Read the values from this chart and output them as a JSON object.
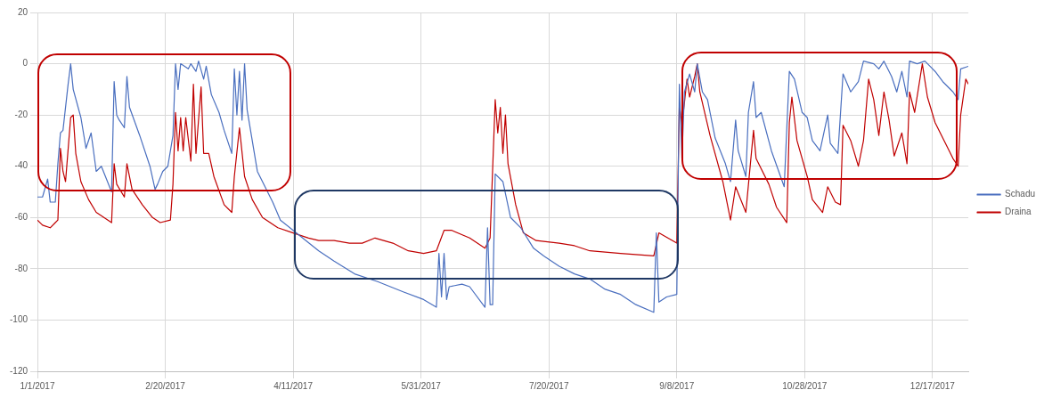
{
  "chart_data": {
    "type": "line",
    "legend": "right",
    "grid": true,
    "marker": "none",
    "line_style": "solid",
    "xlim": [
      "2017-01-01",
      "2017-12-31"
    ],
    "xticks": [
      {
        "value": "2017-01-01",
        "label": "1/1/2017"
      },
      {
        "value": "2017-02-20",
        "label": "2/20/2017"
      },
      {
        "value": "2017-04-11",
        "label": "4/11/2017"
      },
      {
        "value": "2017-05-31",
        "label": "5/31/2017"
      },
      {
        "value": "2017-07-20",
        "label": "7/20/2017"
      },
      {
        "value": "2017-09-08",
        "label": "9/8/2017"
      },
      {
        "value": "2017-10-28",
        "label": "10/28/2017"
      },
      {
        "value": "2017-12-17",
        "label": "12/17/2017"
      }
    ],
    "ylim": [
      -120,
      20
    ],
    "yticks": [
      -120,
      -100,
      -80,
      -60,
      -40,
      -20,
      0,
      20
    ],
    "series": [
      {
        "name": "Schadu",
        "color": "#4a6fbf",
        "x": [
          "2017-01-01",
          "2017-01-03",
          "2017-01-05",
          "2017-01-06",
          "2017-01-08",
          "2017-01-09",
          "2017-01-10",
          "2017-01-11",
          "2017-01-13",
          "2017-01-14",
          "2017-01-15",
          "2017-01-18",
          "2017-01-20",
          "2017-01-22",
          "2017-01-24",
          "2017-01-26",
          "2017-01-30",
          "2017-01-31",
          "2017-02-01",
          "2017-02-02",
          "2017-02-04",
          "2017-02-05",
          "2017-02-06",
          "2017-02-10",
          "2017-02-14",
          "2017-02-16",
          "2017-02-17",
          "2017-02-19",
          "2017-02-21",
          "2017-02-23",
          "2017-02-24",
          "2017-02-25",
          "2017-02-26",
          "2017-03-01",
          "2017-03-02",
          "2017-03-04",
          "2017-03-05",
          "2017-03-07",
          "2017-03-08",
          "2017-03-10",
          "2017-03-13",
          "2017-03-15",
          "2017-03-18",
          "2017-03-19",
          "2017-03-20",
          "2017-03-21",
          "2017-03-22",
          "2017-03-23",
          "2017-03-24",
          "2017-03-28",
          "2017-04-01",
          "2017-04-03",
          "2017-04-06",
          "2017-04-11",
          "2017-04-21",
          "2017-04-27",
          "2017-05-05",
          "2017-05-14",
          "2017-05-24",
          "2017-06-01",
          "2017-06-06",
          "2017-06-07",
          "2017-06-08",
          "2017-06-09",
          "2017-06-10",
          "2017-06-11",
          "2017-06-16",
          "2017-06-19",
          "2017-06-25",
          "2017-06-26",
          "2017-06-27",
          "2017-06-28",
          "2017-06-29",
          "2017-07-02",
          "2017-07-05",
          "2017-07-09",
          "2017-07-14",
          "2017-07-18",
          "2017-07-24",
          "2017-07-30",
          "2017-08-05",
          "2017-08-11",
          "2017-08-17",
          "2017-08-23",
          "2017-08-30",
          "2017-08-31",
          "2017-09-01",
          "2017-09-04",
          "2017-09-08",
          "2017-09-09",
          "2017-09-10",
          "2017-09-11",
          "2017-09-13",
          "2017-09-15",
          "2017-09-16",
          "2017-09-18",
          "2017-09-20",
          "2017-09-23",
          "2017-09-27",
          "2017-09-29",
          "2017-10-01",
          "2017-10-02",
          "2017-10-05",
          "2017-10-06",
          "2017-10-08",
          "2017-10-09",
          "2017-10-11",
          "2017-10-15",
          "2017-10-20",
          "2017-10-22",
          "2017-10-24",
          "2017-10-27",
          "2017-10-29",
          "2017-10-31",
          "2017-11-03",
          "2017-11-06",
          "2017-11-07",
          "2017-11-10",
          "2017-11-12",
          "2017-11-15",
          "2017-11-18",
          "2017-11-20",
          "2017-11-24",
          "2017-11-26",
          "2017-11-28",
          "2017-12-01",
          "2017-12-03",
          "2017-12-05",
          "2017-12-07",
          "2017-12-08",
          "2017-12-11",
          "2017-12-14",
          "2017-12-16",
          "2017-12-18",
          "2017-12-21",
          "2017-12-25",
          "2017-12-27",
          "2017-12-28",
          "2017-12-31"
        ],
        "values": [
          -52,
          -52,
          -45,
          -54,
          -54,
          -39,
          -27,
          -26,
          -8,
          0,
          -10,
          -21,
          -33,
          -27,
          -42,
          -40,
          -50,
          -7,
          -20,
          -22,
          -25,
          -5,
          -17,
          -28,
          -40,
          -49,
          -47,
          -42,
          -40,
          -28,
          0,
          -10,
          0,
          -2,
          0,
          -3,
          1,
          -6,
          -1,
          -12,
          -19,
          -26,
          -35,
          -2,
          -20,
          -3,
          -22,
          0,
          -18,
          -42,
          -50,
          -54,
          -61,
          -65,
          -73,
          -77,
          -82,
          -85,
          -89,
          -92,
          -95,
          -74,
          -91,
          -74,
          -92,
          -87,
          -86,
          -87,
          -95,
          -64,
          -94,
          -94,
          -43,
          -46,
          -60,
          -64,
          -72,
          -75,
          -79,
          -82,
          -84,
          -88,
          -90,
          -94,
          -97,
          -66,
          -93,
          -91,
          -90,
          -8,
          -37,
          -11,
          -4,
          -11,
          0,
          -11,
          -14,
          -29,
          -39,
          -46,
          -22,
          -34,
          -44,
          -19,
          -7,
          -21,
          -19,
          -34,
          -48,
          -3,
          -6,
          -19,
          -21,
          -30,
          -34,
          -20,
          -31,
          -35,
          -4,
          -11,
          -7,
          1,
          0,
          -2,
          1,
          -5,
          -11,
          -3,
          -13,
          1,
          0,
          1,
          -1,
          -3,
          -7,
          -11,
          -14,
          -2,
          -1
        ]
      },
      {
        "name": "Draina",
        "color": "#c00000",
        "x": [
          "2017-01-01",
          "2017-01-03",
          "2017-01-06",
          "2017-01-08",
          "2017-01-09",
          "2017-01-10",
          "2017-01-11",
          "2017-01-12",
          "2017-01-14",
          "2017-01-15",
          "2017-01-16",
          "2017-01-18",
          "2017-01-21",
          "2017-01-24",
          "2017-01-27",
          "2017-01-30",
          "2017-01-31",
          "2017-02-01",
          "2017-02-04",
          "2017-02-05",
          "2017-02-07",
          "2017-02-11",
          "2017-02-15",
          "2017-02-18",
          "2017-02-22",
          "2017-02-23",
          "2017-02-24",
          "2017-02-25",
          "2017-02-26",
          "2017-02-27",
          "2017-02-28",
          "2017-03-02",
          "2017-03-03",
          "2017-03-04",
          "2017-03-06",
          "2017-03-07",
          "2017-03-09",
          "2017-03-11",
          "2017-03-15",
          "2017-03-18",
          "2017-03-19",
          "2017-03-21",
          "2017-03-23",
          "2017-03-26",
          "2017-03-30",
          "2017-04-05",
          "2017-04-11",
          "2017-04-17",
          "2017-04-21",
          "2017-04-27",
          "2017-05-03",
          "2017-05-08",
          "2017-05-13",
          "2017-05-20",
          "2017-05-26",
          "2017-06-01",
          "2017-06-06",
          "2017-06-09",
          "2017-06-12",
          "2017-06-19",
          "2017-06-25",
          "2017-06-27",
          "2017-06-29",
          "2017-06-30",
          "2017-07-01",
          "2017-07-02",
          "2017-07-03",
          "2017-07-04",
          "2017-07-07",
          "2017-07-10",
          "2017-07-15",
          "2017-07-24",
          "2017-07-30",
          "2017-08-05",
          "2017-08-17",
          "2017-08-30",
          "2017-09-01",
          "2017-09-08",
          "2017-09-09",
          "2017-09-10",
          "2017-09-12",
          "2017-09-13",
          "2017-09-15",
          "2017-09-16",
          "2017-09-17",
          "2017-09-21",
          "2017-09-26",
          "2017-09-29",
          "2017-10-01",
          "2017-10-05",
          "2017-10-08",
          "2017-10-09",
          "2017-10-14",
          "2017-10-17",
          "2017-10-21",
          "2017-10-22",
          "2017-10-23",
          "2017-10-25",
          "2017-10-29",
          "2017-10-31",
          "2017-11-04",
          "2017-11-06",
          "2017-11-09",
          "2017-11-11",
          "2017-11-12",
          "2017-11-15",
          "2017-11-18",
          "2017-11-20",
          "2017-11-22",
          "2017-11-24",
          "2017-11-26",
          "2017-11-28",
          "2017-11-30",
          "2017-12-02",
          "2017-12-05",
          "2017-12-07",
          "2017-12-08",
          "2017-12-10",
          "2017-12-13",
          "2017-12-15",
          "2017-12-18",
          "2017-12-21",
          "2017-12-25",
          "2017-12-27",
          "2017-12-28",
          "2017-12-30",
          "2017-12-31"
        ],
        "values": [
          -61,
          -63,
          -64,
          -62,
          -61,
          -33,
          -42,
          -46,
          -21,
          -20,
          -35,
          -46,
          -53,
          -58,
          -60,
          -62,
          -39,
          -47,
          -52,
          -39,
          -49,
          -55,
          -60,
          -62,
          -61,
          -47,
          -19,
          -34,
          -21,
          -34,
          -21,
          -38,
          -8,
          -35,
          -9,
          -35,
          -35,
          -44,
          -55,
          -58,
          -44,
          -25,
          -44,
          -53,
          -60,
          -64,
          -66,
          -68,
          -69,
          -69,
          -70,
          -70,
          -68,
          -70,
          -73,
          -74,
          -73,
          -65,
          -65,
          -68,
          -72,
          -68,
          -14,
          -27,
          -17,
          -35,
          -20,
          -39,
          -55,
          -66,
          -69,
          -70,
          -71,
          -73,
          -74,
          -75,
          -66,
          -70,
          -16,
          -24,
          -6,
          -13,
          -5,
          0,
          -11,
          -28,
          -46,
          -61,
          -48,
          -58,
          -26,
          -37,
          -47,
          -56,
          -62,
          -23,
          -13,
          -30,
          -44,
          -53,
          -58,
          -48,
          -54,
          -55,
          -24,
          -30,
          -40,
          -30,
          -6,
          -14,
          -28,
          -11,
          -22,
          -36,
          -27,
          -39,
          -11,
          -19,
          0,
          -13,
          -23,
          -29,
          -37,
          -40,
          -20,
          -6,
          -8
        ]
      }
    ]
  }
}
